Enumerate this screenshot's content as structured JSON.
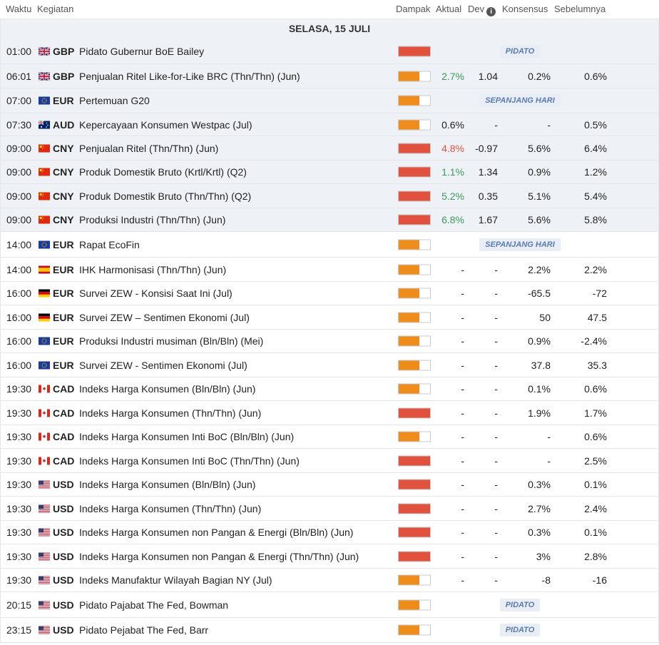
{
  "header": {
    "waktu": "Waktu",
    "kegiatan": "Kegiatan",
    "dampak": "Dampak",
    "aktual": "Aktual",
    "dev": "Dev",
    "konsensus": "Konsensus",
    "sebelumnya": "Sebelumnya"
  },
  "date_label": "SELASA, 15 JULI",
  "colors": {
    "high": "#e0523e",
    "medium": "#ee8c1c"
  },
  "rows": [
    {
      "time": "01:00",
      "flag": "gb",
      "currency": "GBP",
      "event": "Pidato Gubernur BoE Bailey",
      "impact": "high",
      "badge": "PIDATO",
      "past": true
    },
    {
      "time": "06:01",
      "flag": "gb",
      "currency": "GBP",
      "event": "Penjualan Ritel Like-for-Like BRC (Thn/Thn) (Jun)",
      "impact": "medium",
      "actual": "2.7%",
      "actual_color": "green",
      "dev": "1.04",
      "consensus": "0.2%",
      "previous": "0.6%",
      "past": true
    },
    {
      "time": "07:00",
      "flag": "eu",
      "currency": "EUR",
      "event": "Pertemuan G20",
      "impact": "medium",
      "badge": "SEPANJANG HARI",
      "past": true
    },
    {
      "time": "07:30",
      "flag": "au",
      "currency": "AUD",
      "event": "Kepercayaan Konsumen Westpac (Jul)",
      "impact": "medium",
      "actual": "0.6%",
      "dev": "-",
      "consensus": "-",
      "previous": "0.5%",
      "past": true
    },
    {
      "time": "09:00",
      "flag": "cn",
      "currency": "CNY",
      "event": "Penjualan Ritel (Thn/Thn) (Jun)",
      "impact": "high",
      "actual": "4.8%",
      "actual_color": "red",
      "dev": "-0.97",
      "consensus": "5.6%",
      "previous": "6.4%",
      "past": true
    },
    {
      "time": "09:00",
      "flag": "cn",
      "currency": "CNY",
      "event": "Produk Domestik Bruto (Krtl/Krtl) (Q2)",
      "impact": "high",
      "actual": "1.1%",
      "actual_color": "green",
      "dev": "1.34",
      "consensus": "0.9%",
      "previous": "1.2%",
      "past": true
    },
    {
      "time": "09:00",
      "flag": "cn",
      "currency": "CNY",
      "event": "Produk Domestik Bruto (Thn/Thn) (Q2)",
      "impact": "high",
      "actual": "5.2%",
      "actual_color": "green",
      "dev": "0.35",
      "consensus": "5.1%",
      "previous": "5.4%",
      "past": true
    },
    {
      "time": "09:00",
      "flag": "cn",
      "currency": "CNY",
      "event": "Produksi Industri (Thn/Thn) (Jun)",
      "impact": "high",
      "actual": "6.8%",
      "actual_color": "green",
      "dev": "1.67",
      "consensus": "5.6%",
      "previous": "5.8%",
      "past": true
    },
    {
      "time": "14:00",
      "flag": "eu",
      "currency": "EUR",
      "event": "Rapat EcoFin",
      "impact": "medium",
      "badge": "SEPANJANG HARI",
      "past": false
    },
    {
      "time": "14:00",
      "flag": "es",
      "currency": "EUR",
      "event": "IHK Harmonisasi (Thn/Thn) (Jun)",
      "impact": "medium",
      "actual": "-",
      "dev": "-",
      "consensus": "2.2%",
      "previous": "2.2%",
      "past": false
    },
    {
      "time": "16:00",
      "flag": "de",
      "currency": "EUR",
      "event": "Survei ZEW - Konsisi Saat Ini (Jul)",
      "impact": "medium",
      "actual": "-",
      "dev": "-",
      "consensus": "-65.5",
      "previous": "-72",
      "past": false
    },
    {
      "time": "16:00",
      "flag": "de",
      "currency": "EUR",
      "event": "Survei ZEW – Sentimen Ekonomi (Jul)",
      "impact": "medium",
      "actual": "-",
      "dev": "-",
      "consensus": "50",
      "previous": "47.5",
      "past": false
    },
    {
      "time": "16:00",
      "flag": "eu",
      "currency": "EUR",
      "event": "Produksi Industri musiman (Bln/Bln) (Mei)",
      "impact": "medium",
      "actual": "-",
      "dev": "-",
      "consensus": "0.9%",
      "previous": "-2.4%",
      "past": false
    },
    {
      "time": "16:00",
      "flag": "eu",
      "currency": "EUR",
      "event": "Survei ZEW - Sentimen Ekonomi (Jul)",
      "impact": "medium",
      "actual": "-",
      "dev": "-",
      "consensus": "37.8",
      "previous": "35.3",
      "past": false
    },
    {
      "time": "19:30",
      "flag": "ca",
      "currency": "CAD",
      "event": "Indeks Harga Konsumen (Bln/Bln) (Jun)",
      "impact": "medium",
      "actual": "-",
      "dev": "-",
      "consensus": "0.1%",
      "previous": "0.6%",
      "past": false
    },
    {
      "time": "19:30",
      "flag": "ca",
      "currency": "CAD",
      "event": "Indeks Harga Konsumen (Thn/Thn) (Jun)",
      "impact": "high",
      "actual": "-",
      "dev": "-",
      "consensus": "1.9%",
      "previous": "1.7%",
      "past": false
    },
    {
      "time": "19:30",
      "flag": "ca",
      "currency": "CAD",
      "event": "Indeks Harga Konsumen Inti BoC (Bln/Bln) (Jun)",
      "impact": "medium",
      "actual": "-",
      "dev": "-",
      "consensus": "-",
      "previous": "0.6%",
      "past": false
    },
    {
      "time": "19:30",
      "flag": "ca",
      "currency": "CAD",
      "event": "Indeks Harga Konsumen Inti BoC (Thn/Thn) (Jun)",
      "impact": "high",
      "actual": "-",
      "dev": "-",
      "consensus": "-",
      "previous": "2.5%",
      "past": false
    },
    {
      "time": "19:30",
      "flag": "us",
      "currency": "USD",
      "event": "Indeks Harga Konsumen (Bln/Bln) (Jun)",
      "impact": "high",
      "actual": "-",
      "dev": "-",
      "consensus": "0.3%",
      "previous": "0.1%",
      "past": false
    },
    {
      "time": "19:30",
      "flag": "us",
      "currency": "USD",
      "event": "Indeks Harga Konsumen (Thn/Thn) (Jun)",
      "impact": "high",
      "actual": "-",
      "dev": "-",
      "consensus": "2.7%",
      "previous": "2.4%",
      "past": false
    },
    {
      "time": "19:30",
      "flag": "us",
      "currency": "USD",
      "event": "Indeks Harga Konsumen non Pangan & Energi (Bln/Bln) (Jun)",
      "impact": "high",
      "actual": "-",
      "dev": "-",
      "consensus": "0.3%",
      "previous": "0.1%",
      "past": false
    },
    {
      "time": "19:30",
      "flag": "us",
      "currency": "USD",
      "event": "Indeks Harga Konsumen non Pangan & Energi (Thn/Thn) (Jun)",
      "impact": "high",
      "actual": "-",
      "dev": "-",
      "consensus": "3%",
      "previous": "2.8%",
      "past": false
    },
    {
      "time": "19:30",
      "flag": "us",
      "currency": "USD",
      "event": "Indeks Manufaktur Wilayah Bagian NY (Jul)",
      "impact": "medium",
      "actual": "-",
      "dev": "-",
      "consensus": "-8",
      "previous": "-16",
      "past": false
    },
    {
      "time": "20:15",
      "flag": "us",
      "currency": "USD",
      "event": "Pidato Pajabat The Fed, Bowman",
      "impact": "medium",
      "badge": "PIDATO",
      "past": false
    },
    {
      "time": "23:15",
      "flag": "us",
      "currency": "USD",
      "event": "Pidato Pejabat The Fed, Barr",
      "impact": "medium",
      "badge": "PIDATO",
      "past": false
    }
  ]
}
